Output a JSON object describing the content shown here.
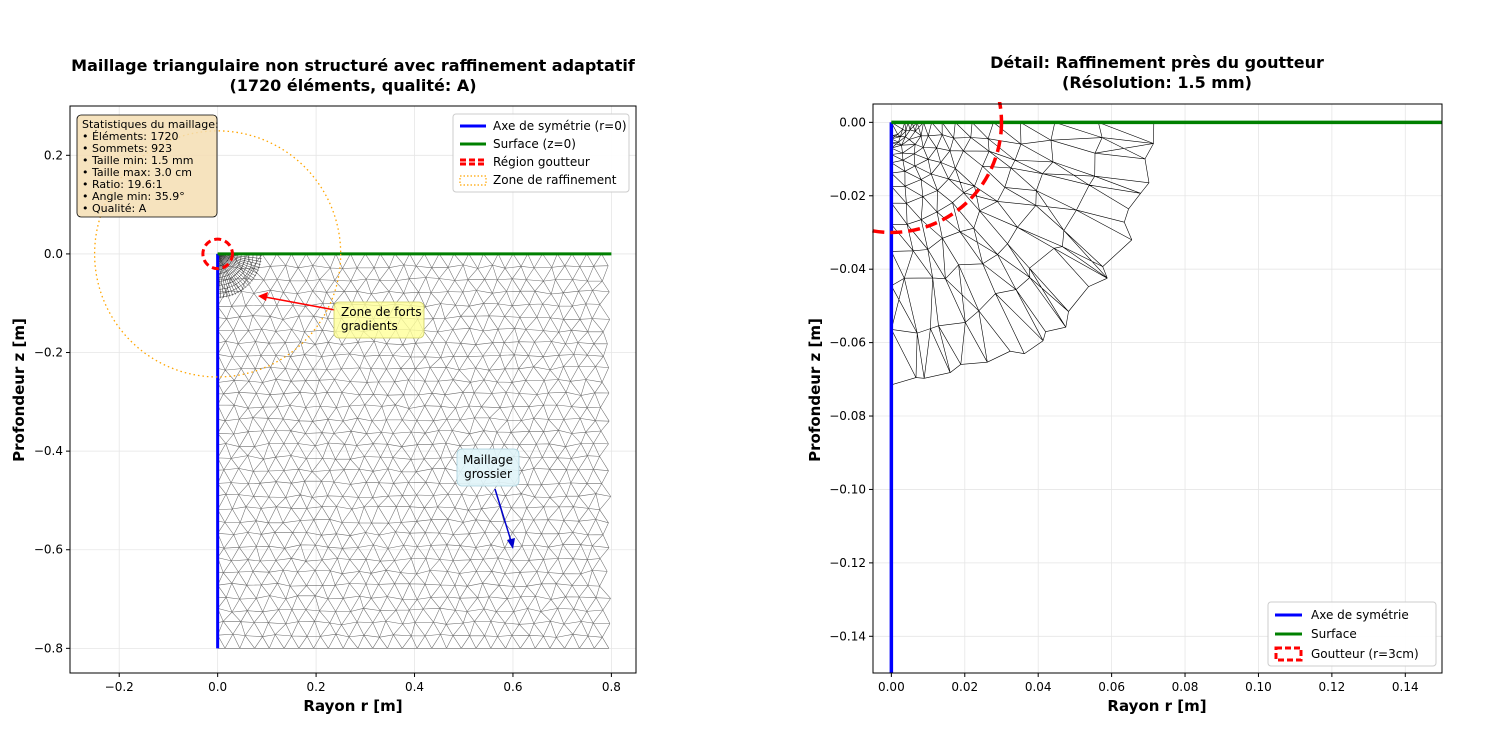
{
  "figure": {
    "left_title": [
      "Maillage triangulaire non structuré avec raffinement adaptatif",
      "(1720 éléments, qualité: A)"
    ],
    "right_title": [
      "Détail: Raffinement près du goutteur",
      "(Résolution: 1.5 mm)"
    ],
    "stats_box": [
      "Statistiques du maillage:",
      "• Éléments: 1720",
      "• Sommets: 923",
      "• Taille min: 1.5 mm",
      "• Taille max: 3.0 cm",
      "• Ratio: 19.6:1",
      "• Angle min: 35.9°",
      "• Qualité: A"
    ],
    "annotations": {
      "high_gradients": [
        "Zone de forts",
        "gradients"
      ],
      "coarse_mesh": [
        "Maillage",
        "grossier"
      ]
    }
  },
  "chart_data": [
    {
      "type": "line",
      "title": "Maillage triangulaire non structuré avec raffinement adaptatif\n(1720 éléments, qualité: A)",
      "xlabel": "Rayon r [m]",
      "ylabel": "Profondeur z [m]",
      "xlim": [
        -0.3,
        0.85
      ],
      "ylim": [
        -0.85,
        0.3
      ],
      "xticks": [
        -0.2,
        0.0,
        0.2,
        0.4,
        0.6,
        0.8
      ],
      "xtick_labels": [
        "−0.2",
        "0.0",
        "0.2",
        "0.4",
        "0.6",
        "0.8"
      ],
      "yticks": [
        0.2,
        0.0,
        -0.2,
        -0.4,
        -0.6,
        -0.8
      ],
      "ytick_labels": [
        "0.2",
        "0.0",
        "−0.2",
        "−0.4",
        "−0.6",
        "−0.8"
      ],
      "grid": true,
      "legend_position": "upper right",
      "series": [
        {
          "name": "Axe de symétrie (r=0)",
          "color": "#0000ff",
          "x": [
            0,
            0
          ],
          "y": [
            0,
            -0.8
          ]
        },
        {
          "name": "Surface (z=0)",
          "color": "#008000",
          "x": [
            0,
            0.8
          ],
          "y": [
            0,
            0
          ]
        },
        {
          "name": "Région goutteur",
          "color": "#ff0000",
          "style": "dashed circle",
          "center": [
            0,
            0
          ],
          "radius": 0.03
        },
        {
          "name": "Zone de raffinement",
          "color": "#ffa500",
          "style": "dotted circle",
          "center": [
            0,
            0
          ],
          "radius": 0.25
        }
      ],
      "mesh": {
        "domain_r": [
          0,
          0.8
        ],
        "domain_z": [
          -0.8,
          0
        ],
        "elements": 1720,
        "vertices": 923,
        "h_min_m": 0.0015,
        "h_max_m": 0.03
      },
      "annotations": [
        {
          "text": "Zone de forts\ngradients",
          "xy": [
            0.08,
            -0.08
          ],
          "xytext": [
            0.25,
            -0.13
          ]
        },
        {
          "text": "Maillage\ngrossier",
          "xy": [
            0.6,
            -0.6
          ],
          "xytext": [
            0.55,
            -0.43
          ]
        }
      ]
    },
    {
      "type": "line",
      "title": "Détail: Raffinement près du goutteur\n(Résolution: 1.5 mm)",
      "xlabel": "Rayon r [m]",
      "ylabel": "Profondeur z [m]",
      "xlim": [
        -0.005,
        0.15
      ],
      "ylim": [
        -0.15,
        0.005
      ],
      "xticks": [
        0.0,
        0.02,
        0.04,
        0.06,
        0.08,
        0.1,
        0.12,
        0.14
      ],
      "xtick_labels": [
        "0.00",
        "0.02",
        "0.04",
        "0.06",
        "0.08",
        "0.10",
        "0.12",
        "0.14"
      ],
      "yticks": [
        0.0,
        -0.02,
        -0.04,
        -0.06,
        -0.08,
        -0.1,
        -0.12,
        -0.14
      ],
      "ytick_labels": [
        "0.00",
        "−0.02",
        "−0.04",
        "−0.06",
        "−0.08",
        "−0.10",
        "−0.12",
        "−0.14"
      ],
      "grid": true,
      "legend_position": "lower right",
      "series": [
        {
          "name": "Axe de symétrie",
          "color": "#0000ff",
          "x": [
            0,
            0
          ],
          "y": [
            0,
            -0.15
          ]
        },
        {
          "name": "Surface",
          "color": "#008000",
          "x": [
            0,
            0.15
          ],
          "y": [
            0,
            0
          ]
        },
        {
          "name": "Goutteur (r=3cm)",
          "color": "#ff0000",
          "style": "dashed circle",
          "center": [
            0,
            0
          ],
          "radius": 0.03
        }
      ]
    }
  ]
}
